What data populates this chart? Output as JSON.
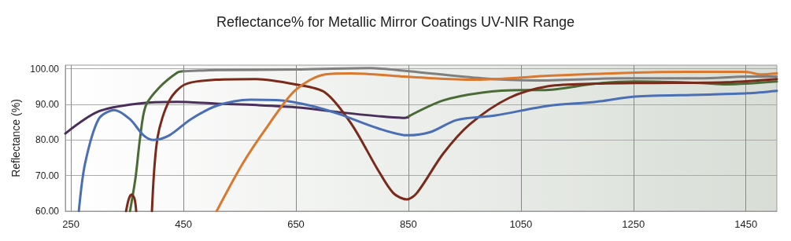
{
  "chart_data": {
    "type": "line",
    "title": "Reflectance% for Metallic Mirror Coatings UV-NIR Range",
    "ylabel": "Reflectance (%)",
    "xlim": [
      240,
      1505
    ],
    "xticks": [
      250,
      450,
      650,
      850,
      1050,
      1250,
      1450
    ],
    "ylim": [
      60,
      101
    ],
    "yticks": [
      {
        "value": 60,
        "label": "60.00"
      },
      {
        "value": 70,
        "label": "70.00"
      },
      {
        "value": 80,
        "label": "80.00"
      },
      {
        "value": 90,
        "label": "90.00"
      },
      {
        "value": 100,
        "label": "100.00"
      }
    ],
    "grid": true,
    "marker": "none",
    "line_style": "solid",
    "series": [
      {
        "color": "#4a2f5a",
        "x": [
          240,
          299,
          369,
          439,
          508,
          580,
          656,
          726,
          795,
          842,
          850
        ],
        "values": [
          81.8,
          88,
          90.2,
          90.7,
          90.2,
          89.8,
          89.1,
          87.8,
          86.7,
          86.2,
          86.4
        ]
      },
      {
        "color": "#4a6b35",
        "x": [
          850,
          912,
          981,
          1051,
          1089,
          1183,
          1253,
          1369,
          1415,
          1505
        ],
        "values": [
          86.6,
          91.1,
          93.3,
          94,
          94,
          95.8,
          96.4,
          96,
          95.6,
          96.4
        ]
      },
      {
        "color": "#4a6b35",
        "x": [
          355,
          365,
          373,
          383,
          407,
          439,
          450
        ],
        "values": [
          60,
          69.6,
          80.7,
          89.6,
          94.7,
          98.9,
          99.3
        ]
      },
      {
        "color": "#7f7f7f",
        "x": [
          450,
          509,
          649,
          781,
          851,
          981,
          1075,
          1229,
          1369,
          1453,
          1505
        ],
        "values": [
          99.3,
          99.6,
          99.8,
          100.2,
          99.3,
          97.3,
          96.7,
          97.3,
          97.3,
          97.8,
          97.8
        ]
      },
      {
        "color": "#7a2a1a",
        "x": [
          348,
          353,
          358,
          363,
          366
        ],
        "values": [
          60,
          63.5,
          64.7,
          63.5,
          60
        ]
      },
      {
        "color": "#7a2a1a",
        "x": [
          394,
          404,
          425,
          453,
          508,
          579,
          649,
          702,
          749,
          795,
          823,
          847,
          865,
          912,
          959,
          1029,
          1099,
          1183,
          1275,
          1415,
          1505
        ],
        "values": [
          60,
          80.7,
          91.1,
          95.6,
          96.9,
          97.1,
          95.6,
          93.3,
          84.4,
          71.8,
          65.1,
          63.3,
          65.1,
          76.2,
          84.4,
          91.8,
          95.1,
          95.8,
          96,
          96.2,
          97.1
        ]
      },
      {
        "color": "#4a6fb5",
        "x": [
          264,
          275,
          299,
          327,
          355,
          379,
          397,
          425,
          463,
          509,
          569,
          625,
          677,
          726,
          795,
          849,
          889,
          936,
          1005,
          1099,
          1183,
          1253,
          1369,
          1453,
          1505
        ],
        "values": [
          60,
          73.3,
          85.8,
          88.4,
          85.8,
          81.3,
          80,
          81.3,
          85.8,
          89.6,
          91.3,
          91.1,
          89.6,
          87.3,
          83.3,
          81.3,
          82.2,
          85.6,
          86.9,
          89.6,
          90.7,
          92.2,
          92.7,
          93.1,
          93.8
        ]
      },
      {
        "color": "#d9782e",
        "x": [
          509,
          555,
          602,
          649,
          702,
          749,
          842,
          959,
          1029,
          1099,
          1253,
          1345,
          1449,
          1477,
          1505
        ],
        "values": [
          60,
          73.3,
          84.4,
          94,
          98.4,
          98.7,
          97.8,
          96.9,
          97.3,
          98,
          98.9,
          99.1,
          99.1,
          98.4,
          98.7
        ]
      }
    ]
  }
}
